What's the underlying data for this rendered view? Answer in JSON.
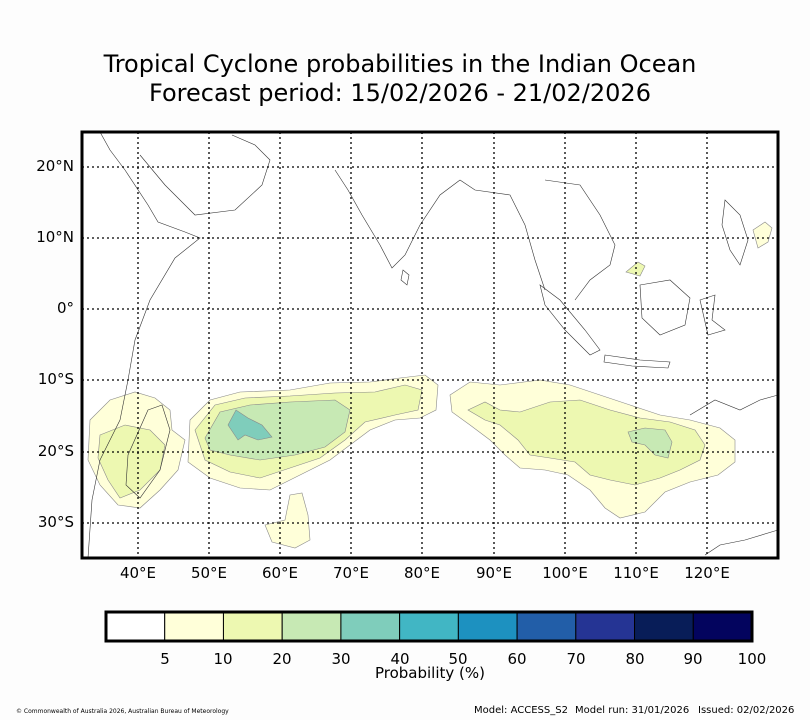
{
  "title": {
    "line1": "Tropical Cyclone probabilities in the Indian Ocean",
    "line2": "Forecast period: 15/02/2026 - 21/02/2026"
  },
  "map": {
    "lat_ticks": [
      "20°N",
      "10°N",
      "0°",
      "10°S",
      "20°S",
      "30°S"
    ],
    "lon_ticks": [
      "40°E",
      "50°E",
      "60°E",
      "70°E",
      "80°E",
      "90°E",
      "100°E",
      "110°E",
      "120°E"
    ],
    "lon_range": [
      32,
      130
    ],
    "lat_range": [
      -35,
      25
    ]
  },
  "colorbar": {
    "title": "Probability (%)",
    "colors": [
      "#ffffff",
      "#ffffd9",
      "#edf8b1",
      "#c7e9b4",
      "#7fcdbb",
      "#41b6c4",
      "#1d91c0",
      "#225ea8",
      "#253494",
      "#081d58",
      "#03045e"
    ],
    "labels": [
      "5",
      "10",
      "20",
      "30",
      "40",
      "50",
      "60",
      "70",
      "80",
      "90",
      "100"
    ]
  },
  "footer": {
    "copyright": "© Commonwealth of Australia 2026, Australian Bureau of Meteorology",
    "model": "Model: ACCESS_S2",
    "model_run": "Model run: 31/01/2026",
    "issued": "Issued: 02/02/2026"
  }
}
